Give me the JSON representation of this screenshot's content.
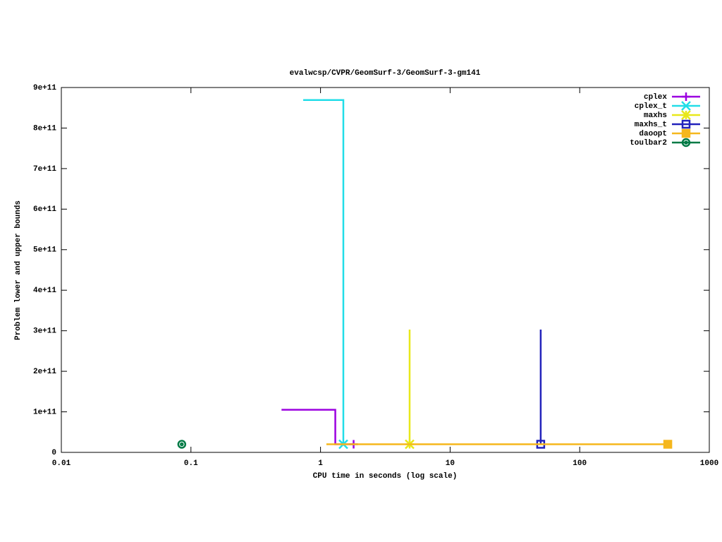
{
  "chart_data": {
    "type": "line",
    "title": "evalwcsp/CVPR/GeomSurf-3/GeomSurf-3-gm141",
    "x_label": "CPU time in seconds (log scale)",
    "y_label": "Problem lower and upper bounds",
    "x_log": true,
    "xlim": [
      0.01,
      1000
    ],
    "xticks": [
      0.01,
      0.1,
      1,
      10,
      100,
      1000
    ],
    "ylim": [
      0,
      900000000000
    ],
    "yticks": [
      0,
      {
        "value": 100000000000,
        "label": "1e+11"
      },
      {
        "value": 200000000000,
        "label": "2e+11"
      },
      {
        "value": 300000000000,
        "label": "3e+11"
      },
      {
        "value": 400000000000,
        "label": "4e+11"
      },
      {
        "value": 500000000000,
        "label": "5e+11"
      },
      {
        "value": 600000000000,
        "label": "6e+11"
      },
      {
        "value": 700000000000,
        "label": "7e+11"
      },
      {
        "value": 800000000000,
        "label": "8e+11"
      },
      {
        "value": 900000000000,
        "label": "9e+11"
      }
    ],
    "grid": false,
    "legend": "top-right",
    "series": [
      {
        "name": "cplex",
        "color": "#9b00e0",
        "marker": "plus",
        "x": [
          0.5,
          1.3,
          1.3,
          1.8
        ],
        "values": [
          105000000000,
          105000000000,
          20000000000,
          20000000000
        ]
      },
      {
        "name": "cplex_t",
        "color": "#22dde8",
        "marker": "cross",
        "x": [
          0.735,
          1.5,
          1.5
        ],
        "values": [
          869000000000,
          869000000000,
          20000000000
        ]
      },
      {
        "name": "maxhs",
        "color": "#e8e81a",
        "marker": "star",
        "x": [
          4.87,
          4.87
        ],
        "values": [
          303000000000,
          20000000000
        ]
      },
      {
        "name": "maxhs_t",
        "color": "#2222bb",
        "marker": "square",
        "x": [
          50,
          50
        ],
        "values": [
          303000000000,
          20000000000
        ]
      },
      {
        "name": "daoopt",
        "color": "#f5b71d",
        "marker": "filled-square",
        "x": [
          1.11,
          478
        ],
        "values": [
          20000000000,
          20000000000
        ]
      },
      {
        "name": "toulbar2",
        "color": "#007a45",
        "marker": "circle",
        "x": [
          0.085
        ],
        "values": [
          20000000000
        ]
      }
    ]
  }
}
